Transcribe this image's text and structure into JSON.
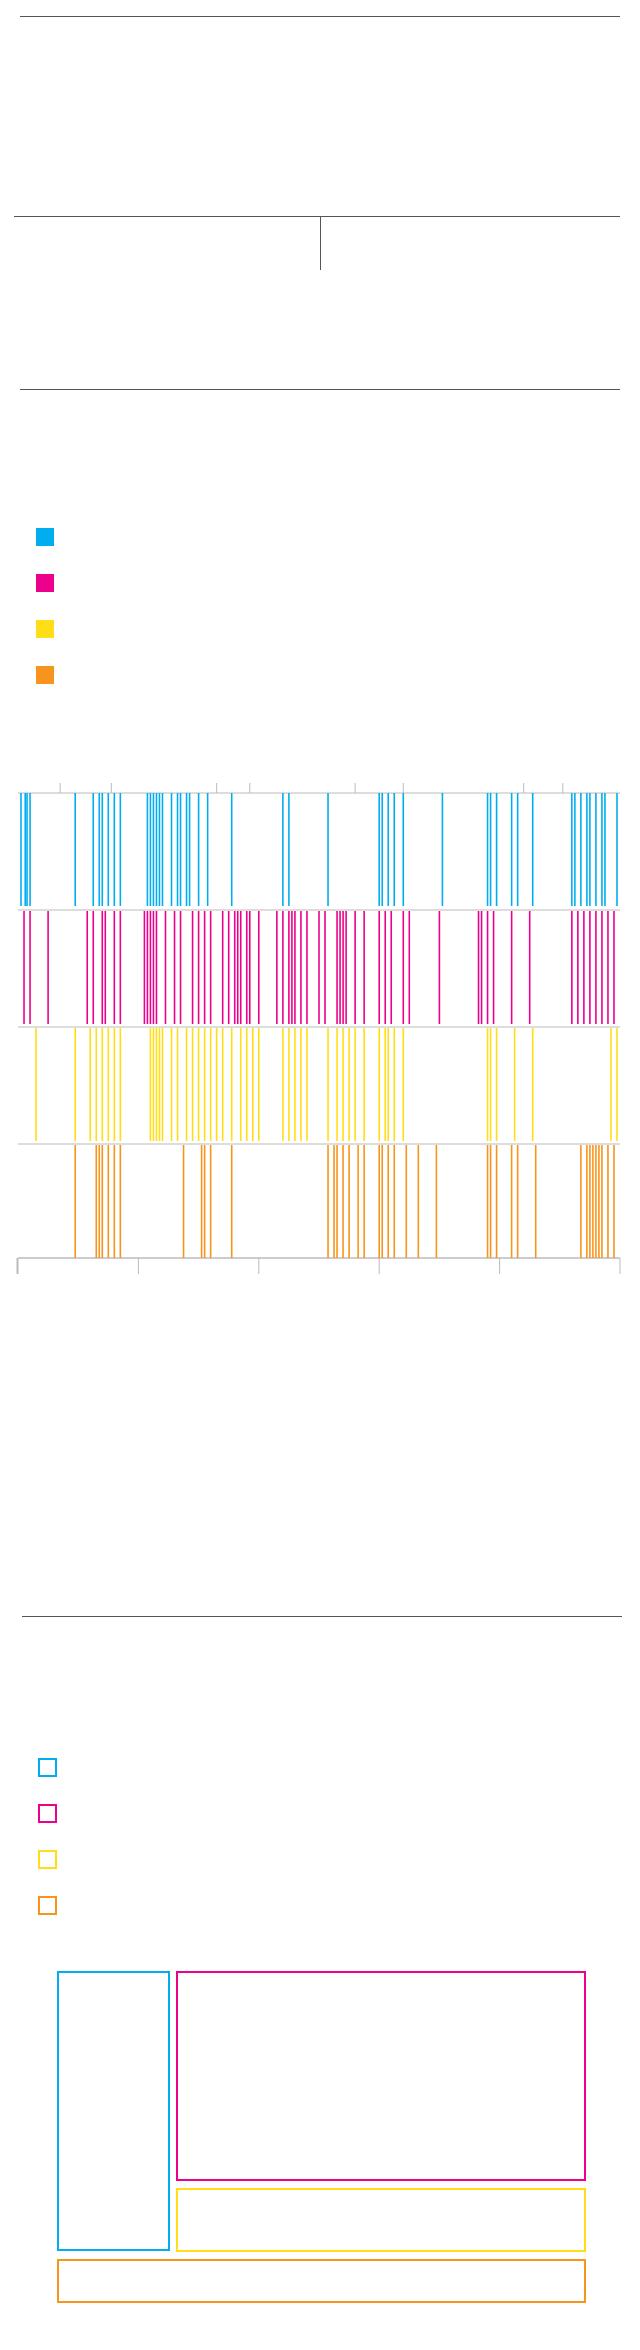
{
  "colors": {
    "cyan": "#00aeef",
    "magenta": "#ec008c",
    "yellow": "#ffde17",
    "orange": "#f7941d",
    "rule": "#555555",
    "axis": "#bbbbbb"
  },
  "legend_filled": [
    {
      "color_key": "cyan",
      "label": ""
    },
    {
      "color_key": "magenta",
      "label": ""
    },
    {
      "color_key": "yellow",
      "label": ""
    },
    {
      "color_key": "orange",
      "label": ""
    }
  ],
  "legend_outline": [
    {
      "color_key": "cyan",
      "label": ""
    },
    {
      "color_key": "magenta",
      "label": ""
    },
    {
      "color_key": "yellow",
      "label": ""
    },
    {
      "color_key": "orange",
      "label": ""
    }
  ],
  "chart_data": [
    {
      "type": "barcode",
      "title": "",
      "xlabel": "",
      "ylabel": "",
      "xlim": [
        0,
        1
      ],
      "series": [
        {
          "color_key": "cyan",
          "x": [
            0.005,
            0.012,
            0.015,
            0.02,
            0.095,
            0.125,
            0.135,
            0.14,
            0.15,
            0.16,
            0.17,
            0.215,
            0.22,
            0.225,
            0.23,
            0.235,
            0.24,
            0.255,
            0.265,
            0.27,
            0.28,
            0.285,
            0.3,
            0.315,
            0.355,
            0.44,
            0.45,
            0.515,
            0.6,
            0.605,
            0.615,
            0.625,
            0.64,
            0.705,
            0.78,
            0.785,
            0.795,
            0.82,
            0.83,
            0.855,
            0.92,
            0.925,
            0.935,
            0.945,
            0.95,
            0.96,
            0.97,
            0.975,
            0.995
          ]
        },
        {
          "color_key": "magenta",
          "x": [
            0.01,
            0.02,
            0.05,
            0.115,
            0.125,
            0.14,
            0.145,
            0.16,
            0.17,
            0.21,
            0.215,
            0.22,
            0.225,
            0.23,
            0.245,
            0.26,
            0.27,
            0.29,
            0.3,
            0.31,
            0.32,
            0.34,
            0.35,
            0.36,
            0.365,
            0.37,
            0.38,
            0.385,
            0.4,
            0.43,
            0.44,
            0.45,
            0.455,
            0.46,
            0.47,
            0.48,
            0.5,
            0.51,
            0.53,
            0.535,
            0.54,
            0.545,
            0.56,
            0.575,
            0.6,
            0.61,
            0.62,
            0.64,
            0.65,
            0.7,
            0.765,
            0.77,
            0.78,
            0.79,
            0.82,
            0.85,
            0.92,
            0.93,
            0.94,
            0.95,
            0.96,
            0.97,
            0.98,
            0.99
          ]
        },
        {
          "color_key": "yellow",
          "x": [
            0.03,
            0.095,
            0.12,
            0.13,
            0.14,
            0.15,
            0.16,
            0.17,
            0.22,
            0.225,
            0.23,
            0.235,
            0.24,
            0.255,
            0.265,
            0.28,
            0.29,
            0.3,
            0.31,
            0.32,
            0.33,
            0.34,
            0.355,
            0.37,
            0.38,
            0.39,
            0.4,
            0.44,
            0.45,
            0.46,
            0.47,
            0.48,
            0.515,
            0.53,
            0.54,
            0.55,
            0.56,
            0.575,
            0.6,
            0.61,
            0.615,
            0.625,
            0.64,
            0.78,
            0.785,
            0.795,
            0.825,
            0.855,
            0.985,
            0.995
          ]
        },
        {
          "color_key": "orange",
          "x": [
            0.095,
            0.13,
            0.135,
            0.14,
            0.15,
            0.16,
            0.17,
            0.275,
            0.305,
            0.31,
            0.32,
            0.355,
            0.515,
            0.525,
            0.53,
            0.54,
            0.55,
            0.565,
            0.575,
            0.6,
            0.605,
            0.615,
            0.625,
            0.645,
            0.665,
            0.695,
            0.78,
            0.785,
            0.795,
            0.82,
            0.83,
            0.86,
            0.935,
            0.945,
            0.95,
            0.955,
            0.96,
            0.965,
            0.97,
            0.98,
            0.99
          ]
        }
      ]
    },
    {
      "type": "treemap",
      "title": "",
      "series": [
        {
          "color_key": "cyan",
          "value": 19.5
        },
        {
          "color_key": "magenta",
          "value": 37.6
        },
        {
          "color_key": "yellow",
          "value": 11.4
        },
        {
          "color_key": "orange",
          "value": 7.6
        }
      ]
    }
  ]
}
